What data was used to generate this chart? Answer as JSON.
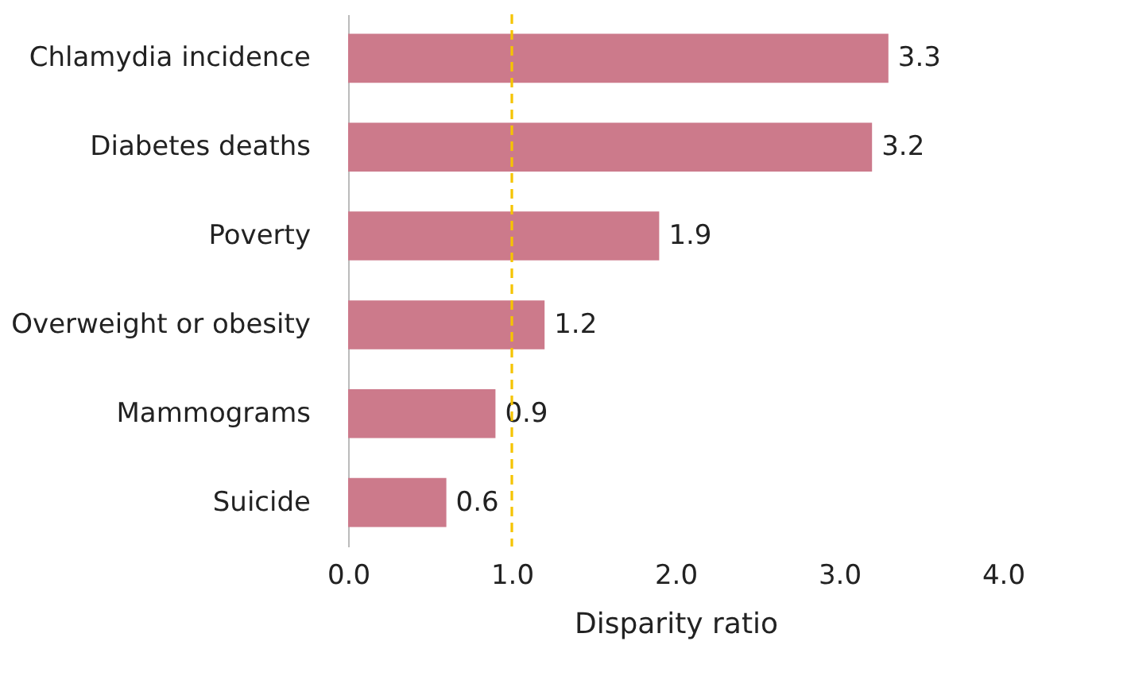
{
  "chart_data": {
    "type": "bar",
    "orientation": "horizontal",
    "xlabel": "Disparity ratio",
    "categories": [
      "Chlamydia incidence",
      "Diabetes deaths",
      "Poverty",
      "Overweight or obesity",
      "Mammograms",
      "Suicide"
    ],
    "values": [
      3.3,
      3.2,
      1.9,
      1.2,
      0.9,
      0.6
    ],
    "color": "#cc7a8b",
    "data_labels": true,
    "xlim": [
      0,
      4
    ],
    "xticks": [
      {
        "value": 0,
        "label": "0.0"
      },
      {
        "value": 1,
        "label": "1.0"
      },
      {
        "value": 2,
        "label": "2.0"
      },
      {
        "value": 3,
        "label": "3.0"
      },
      {
        "value": 4,
        "label": "4.0"
      }
    ],
    "ref_lines": [
      {
        "axis": "x",
        "value": 1,
        "color": "#f5c400",
        "line_style": "dashed"
      }
    ],
    "grid": false
  }
}
